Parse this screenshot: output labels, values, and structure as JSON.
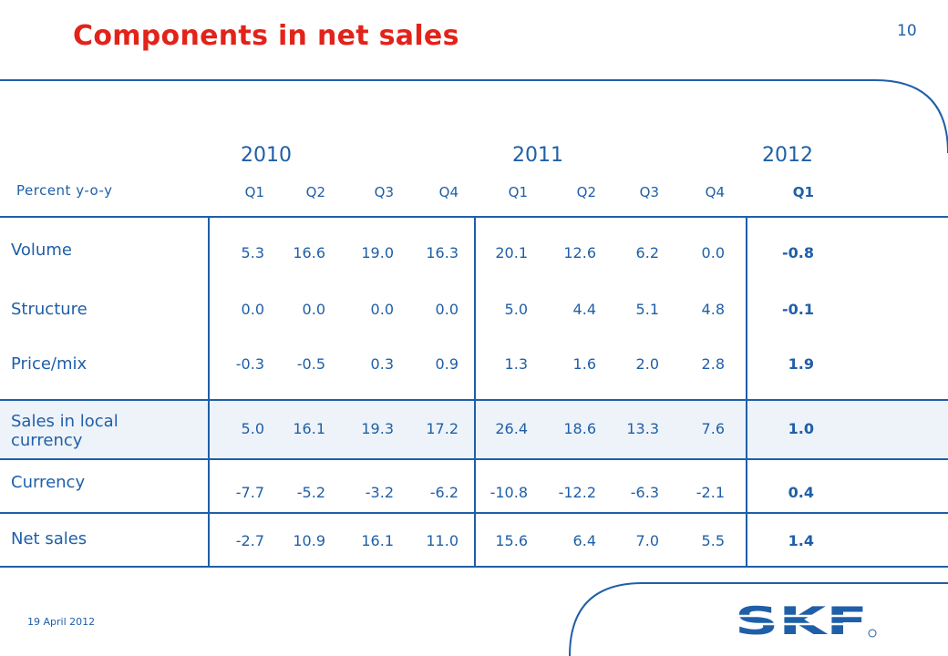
{
  "title": "Components in net sales",
  "page_number": "10",
  "unit_label": "Percent y-o-y",
  "years": [
    "2010",
    "2011",
    "2012"
  ],
  "quarters": [
    "Q1",
    "Q2",
    "Q3",
    "Q4",
    "Q1",
    "Q2",
    "Q3",
    "Q4",
    "Q1"
  ],
  "rows": [
    {
      "label": "Volume",
      "values": [
        "5.3",
        "16.6",
        "19.0",
        "16.3",
        "20.1",
        "12.6",
        "6.2",
        "0.0",
        "-0.8"
      ]
    },
    {
      "label": "Structure",
      "values": [
        "0.0",
        "0.0",
        "0.0",
        "0.0",
        "5.0",
        "4.4",
        "5.1",
        "4.8",
        "-0.1"
      ]
    },
    {
      "label": "Price/mix",
      "values": [
        "-0.3",
        "-0.5",
        "0.3",
        "0.9",
        "1.3",
        "1.6",
        "2.0",
        "2.8",
        "1.9"
      ]
    },
    {
      "label_line1": "Sales in local",
      "label_line2": "currency",
      "values": [
        "5.0",
        "16.1",
        "19.3",
        "17.2",
        "26.4",
        "18.6",
        "13.3",
        "7.6",
        "1.0"
      ]
    },
    {
      "label": "Currency",
      "values": [
        "-7.7",
        "-5.2",
        "-3.2",
        "-6.2",
        "-10.8",
        "-12.2",
        "-6.3",
        "-2.1",
        "0.4"
      ]
    },
    {
      "label": "Net sales",
      "values": [
        "-2.7",
        "10.9",
        "16.1",
        "11.0",
        "15.6",
        "6.4",
        "7.0",
        "5.5",
        "1.4"
      ]
    }
  ],
  "footer_date": "19 April 2012",
  "logo_text": "SKF",
  "colors": {
    "title": "#e2231a",
    "text": "#1f5fa8",
    "shade": "#eef3f9"
  }
}
